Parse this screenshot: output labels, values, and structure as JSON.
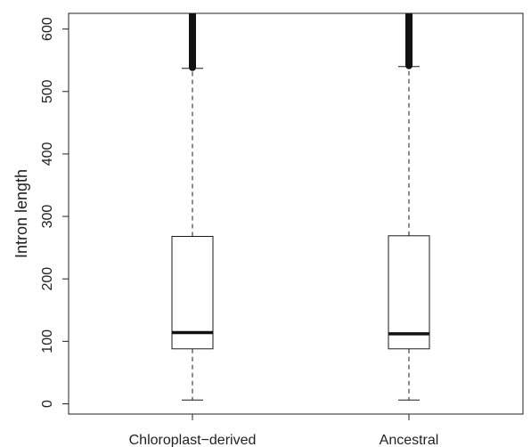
{
  "chart_data": {
    "type": "boxplot",
    "title": "",
    "xlabel": "",
    "ylabel": "Intron length",
    "ylim": [
      -15,
      625
    ],
    "yticks": [
      0,
      100,
      200,
      300,
      400,
      500,
      600
    ],
    "categories": [
      "Chloroplast−derived",
      "Ancestral"
    ],
    "boxes": [
      {
        "category": "Chloroplast−derived",
        "whisker_low": 6,
        "q1": 88,
        "median": 114,
        "q3": 268,
        "whisker_high": 537,
        "outliers_from": 537
      },
      {
        "category": "Ancestral",
        "whisker_low": 6,
        "q1": 88,
        "median": 112,
        "q3": 269,
        "whisker_high": 540,
        "outliers_from": 540
      }
    ],
    "colors": {
      "box_fill": "#ffffff",
      "stroke": "#1a1a1a",
      "median": "#111111"
    },
    "grid": false,
    "legend": "none"
  }
}
